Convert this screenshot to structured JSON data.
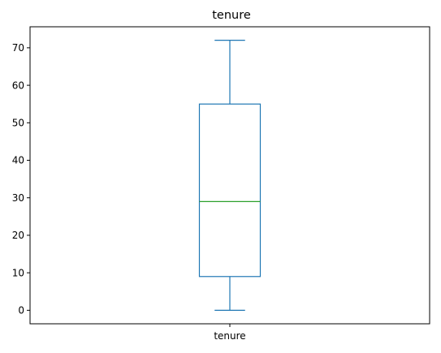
{
  "chart_data": {
    "type": "box",
    "title": "tenure",
    "categories": [
      "tenure"
    ],
    "series": [
      {
        "min": 0,
        "q1": 9,
        "median": 29,
        "q3": 55,
        "max": 72
      }
    ],
    "ylim": [
      -3.6,
      75.6
    ],
    "yticks": [
      0,
      10,
      20,
      30,
      40,
      50,
      60,
      70
    ],
    "ytick_labels": [
      "0",
      "10",
      "20",
      "30",
      "40",
      "50",
      "60",
      "70"
    ],
    "grid": false,
    "colors": {
      "box": "#1f77b4",
      "median": "#2ca02c",
      "axes": "#000000"
    }
  }
}
